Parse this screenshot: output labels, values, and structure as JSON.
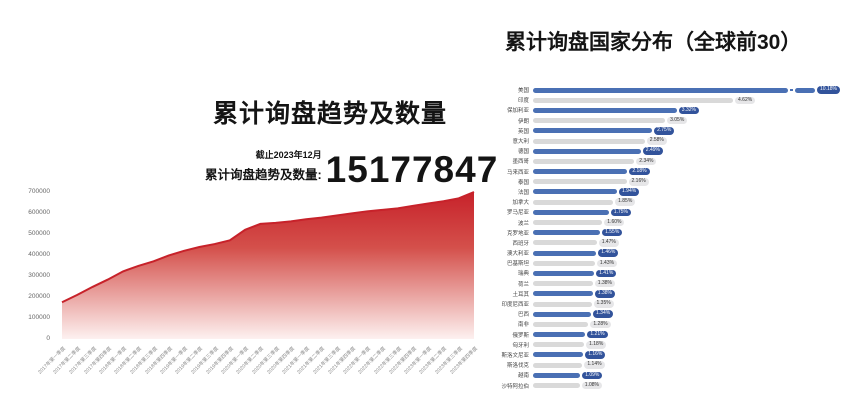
{
  "page": {
    "background": "#ffffff"
  },
  "left_chart": {
    "title": "累计询盘趋势及数量",
    "stat": {
      "as_of": "截止2023年12月",
      "label": "累计询盘趋势及数量:",
      "value": "15177847"
    }
  },
  "right_chart": {
    "title": "累计询盘国家分布（全球前30）"
  },
  "colors": {
    "trend_line": "#c7222a",
    "trend_fill_top": "#c7222a",
    "trend_fill_mid": "#d4504b",
    "trend_fill_bottom": "#fdf1f0",
    "bar_blue": "#4a70b4",
    "bar_gray": "#d9d9d9",
    "pill_blue": "#32539b",
    "pill_gray": "#e6e6e8"
  },
  "chart_data": [
    {
      "type": "area",
      "title": "累计询盘趋势及数量",
      "ylabel": "",
      "xlabel": "",
      "grid": false,
      "ylim": [
        0,
        700000
      ],
      "yticks": [
        0,
        100000,
        200000,
        300000,
        400000,
        500000,
        600000,
        700000
      ],
      "x": [
        "2017年第一季度",
        "2017年第二季度",
        "2017年第三季度",
        "2017年第四季度",
        "2018年第一季度",
        "2018年第二季度",
        "2018年第三季度",
        "2018年第四季度",
        "2019年第一季度",
        "2019年第二季度",
        "2019年第三季度",
        "2019年第四季度",
        "2020年第一季度",
        "2020年第二季度",
        "2020年第三季度",
        "2020年第四季度",
        "2021年第一季度",
        "2021年第二季度",
        "2021年第三季度",
        "2021年第四季度",
        "2022年第一季度",
        "2022年第二季度",
        "2022年第三季度",
        "2022年第四季度",
        "2023年第一季度",
        "2023年第二季度",
        "2023年第三季度",
        "2023年第四季度"
      ],
      "values": [
        175000,
        210000,
        248000,
        283000,
        322000,
        348000,
        370000,
        398000,
        420000,
        438000,
        452000,
        470000,
        520000,
        548000,
        553000,
        560000,
        570000,
        578000,
        588000,
        598000,
        608000,
        615000,
        622000,
        634000,
        645000,
        656000,
        670000,
        700000
      ]
    },
    {
      "type": "bar",
      "orientation": "horizontal",
      "title": "累计询盘国家分布（全球前30）",
      "value_suffix": "%",
      "legend": "none",
      "categories": [
        "美国",
        "印度",
        "保加利亚",
        "伊朗",
        "英国",
        "意大利",
        "德国",
        "墨西哥",
        "马来西亚",
        "泰国",
        "法国",
        "加拿大",
        "罗马尼亚",
        "波兰",
        "克罗地亚",
        "西班牙",
        "澳大利亚",
        "巴基斯坦",
        "瑞典",
        "荷兰",
        "土耳其",
        "印度尼西亚",
        "巴西",
        "南非",
        "俄罗斯",
        "匈牙利",
        "斯洛文尼亚",
        "斯洛伐克",
        "越南",
        "沙特阿拉伯"
      ],
      "values": [
        10.18,
        4.62,
        3.32,
        3.05,
        2.75,
        2.58,
        2.49,
        2.34,
        2.18,
        2.16,
        1.94,
        1.85,
        1.75,
        1.6,
        1.55,
        1.47,
        1.46,
        1.43,
        1.41,
        1.38,
        1.38,
        1.35,
        1.34,
        1.28,
        1.21,
        1.18,
        1.16,
        1.14,
        1.09,
        1.08
      ],
      "labels": [
        "10.18%",
        "4.62%",
        "3.32%",
        "3.05%",
        "2.75%",
        "2.58%",
        "2.49%",
        "2.34%",
        "2.18%",
        "2.16%",
        "1.94%",
        "1.85%",
        "1.75%",
        "1.60%",
        "1.55%",
        "1.47%",
        "1.46%",
        "1.43%",
        "1.41%",
        "1.38%",
        "1.38%",
        "1.35%",
        "1.34%",
        "1.28%",
        "1.21%",
        "1.18%",
        "1.16%",
        "1.14%",
        "1.09%",
        "1.08%"
      ],
      "first_bar_truncated": true
    }
  ]
}
